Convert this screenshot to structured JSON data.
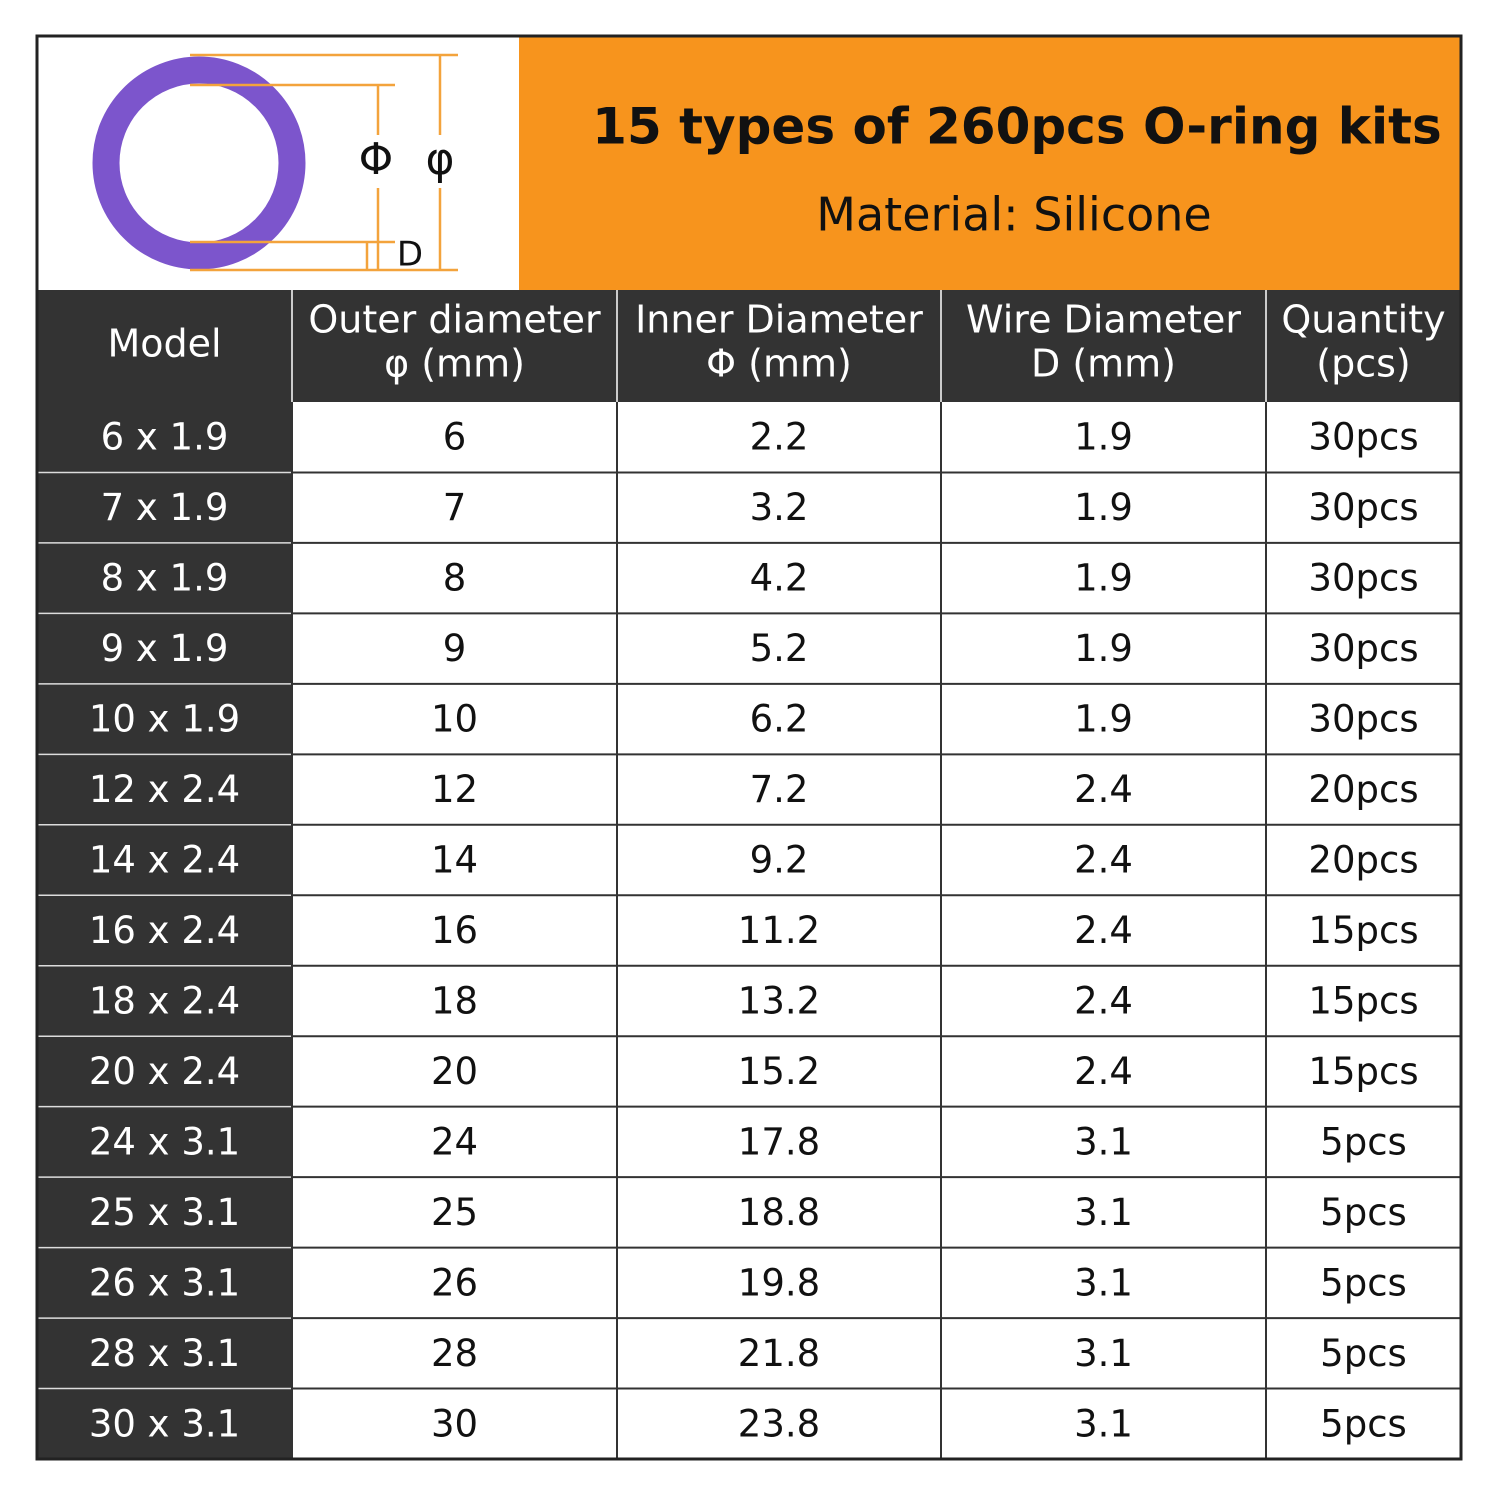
{
  "header": {
    "title": "15 types of 260pcs O-ring kits",
    "subtitle": "Material: Silicone"
  },
  "diagram": {
    "inner_label": "Φ",
    "outer_label": "φ",
    "wire_label": "D"
  },
  "table": {
    "columns": [
      [
        "Model"
      ],
      [
        "Outer diameter",
        "φ (mm)"
      ],
      [
        "Inner Diameter",
        "Φ (mm)"
      ],
      [
        "Wire Diameter",
        "D (mm)"
      ],
      [
        "Quantity",
        "(pcs)"
      ]
    ],
    "rows": [
      [
        "6 x 1.9",
        "6",
        "2.2",
        "1.9",
        "30pcs"
      ],
      [
        "7 x 1.9",
        "7",
        "3.2",
        "1.9",
        "30pcs"
      ],
      [
        "8 x 1.9",
        "8",
        "4.2",
        "1.9",
        "30pcs"
      ],
      [
        "9 x 1.9",
        "9",
        "5.2",
        "1.9",
        "30pcs"
      ],
      [
        "10 x 1.9",
        "10",
        "6.2",
        "1.9",
        "30pcs"
      ],
      [
        "12 x 2.4",
        "12",
        "7.2",
        "2.4",
        "20pcs"
      ],
      [
        "14 x 2.4",
        "14",
        "9.2",
        "2.4",
        "20pcs"
      ],
      [
        "16 x 2.4",
        "16",
        "11.2",
        "2.4",
        "15pcs"
      ],
      [
        "18 x 2.4",
        "18",
        "13.2",
        "2.4",
        "15pcs"
      ],
      [
        "20 x 2.4",
        "20",
        "15.2",
        "2.4",
        "15pcs"
      ],
      [
        "24 x 3.1",
        "24",
        "17.8",
        "3.1",
        "5pcs"
      ],
      [
        "25 x 3.1",
        "25",
        "18.8",
        "3.1",
        "5pcs"
      ],
      [
        "26 x 3.1",
        "26",
        "19.8",
        "3.1",
        "5pcs"
      ],
      [
        "28 x 3.1",
        "28",
        "21.8",
        "3.1",
        "5pcs"
      ],
      [
        "30 x 3.1",
        "30",
        "23.8",
        "3.1",
        "5pcs"
      ]
    ]
  }
}
